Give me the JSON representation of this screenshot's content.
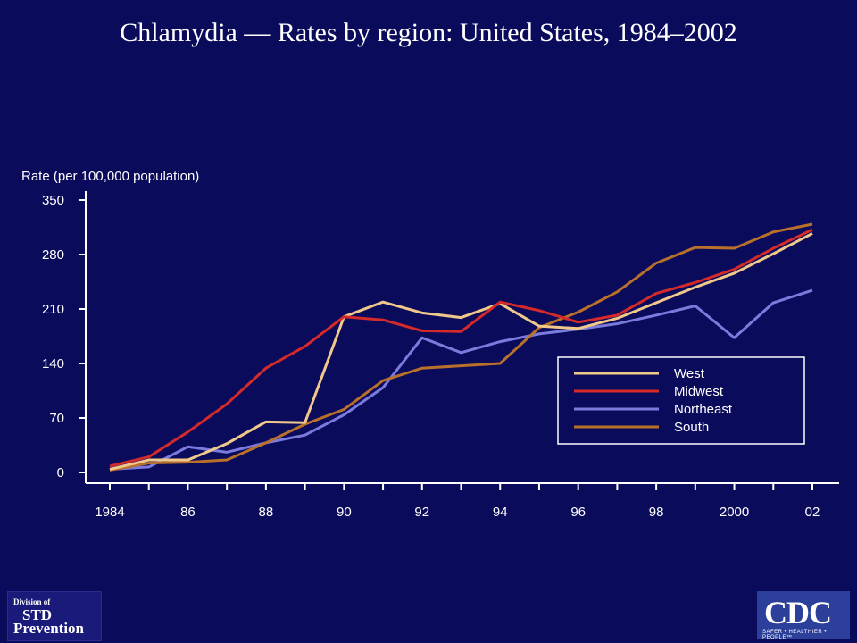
{
  "title": "Chlamydia  — Rates by region: United States, 1984–2002",
  "logos": {
    "std_line1": "Division of",
    "std_line2": "STD",
    "std_line3": "Prevention",
    "cdc_mark": "CDC",
    "cdc_tagline": "SAFER • HEALTHIER • PEOPLE™"
  },
  "colors": {
    "background": "#0b0b5c",
    "axis": "#ffffff"
  },
  "chart_data": {
    "type": "line",
    "title": "Chlamydia  — Rates by region: United States, 1984–2002",
    "xlabel": "",
    "ylabel": "Rate (per 100,000 population)",
    "ylim": [
      0,
      350
    ],
    "yticks": [
      0,
      70,
      140,
      210,
      280,
      350
    ],
    "xlim": [
      1984,
      2002
    ],
    "xticks": [
      {
        "x": 1984,
        "label": "1984"
      },
      {
        "x": 1986,
        "label": "86"
      },
      {
        "x": 1988,
        "label": "88"
      },
      {
        "x": 1990,
        "label": "90"
      },
      {
        "x": 1992,
        "label": "92"
      },
      {
        "x": 1994,
        "label": "94"
      },
      {
        "x": 1996,
        "label": "96"
      },
      {
        "x": 1998,
        "label": "98"
      },
      {
        "x": 2000,
        "label": "2000"
      },
      {
        "x": 2002,
        "label": "02"
      }
    ],
    "x": [
      1984,
      1985,
      1986,
      1987,
      1988,
      1989,
      1990,
      1991,
      1992,
      1993,
      1994,
      1995,
      1996,
      1997,
      1998,
      1999,
      2000,
      2001,
      2002
    ],
    "legend_position": "right",
    "grid": false,
    "series": [
      {
        "name": "West",
        "color": "#f0c98a",
        "values": [
          4,
          16,
          16,
          37,
          65,
          64,
          200,
          219,
          205,
          199,
          217,
          188,
          185,
          198,
          218,
          238,
          256,
          281,
          307
        ]
      },
      {
        "name": "Midwest",
        "color": "#d42a2a",
        "values": [
          8,
          20,
          52,
          88,
          134,
          162,
          200,
          196,
          182,
          181,
          219,
          208,
          193,
          202,
          230,
          244,
          261,
          288,
          312
        ]
      },
      {
        "name": "Northeast",
        "color": "#7b7bdd",
        "values": [
          4,
          7,
          33,
          26,
          38,
          48,
          74,
          109,
          173,
          154,
          168,
          178,
          184,
          191,
          202,
          214,
          173,
          218,
          234
        ]
      },
      {
        "name": "South",
        "color": "#b8702a",
        "values": [
          3,
          12,
          13,
          16,
          38,
          62,
          81,
          118,
          134,
          137,
          140,
          186,
          206,
          232,
          269,
          289,
          288,
          309,
          319
        ]
      }
    ]
  }
}
